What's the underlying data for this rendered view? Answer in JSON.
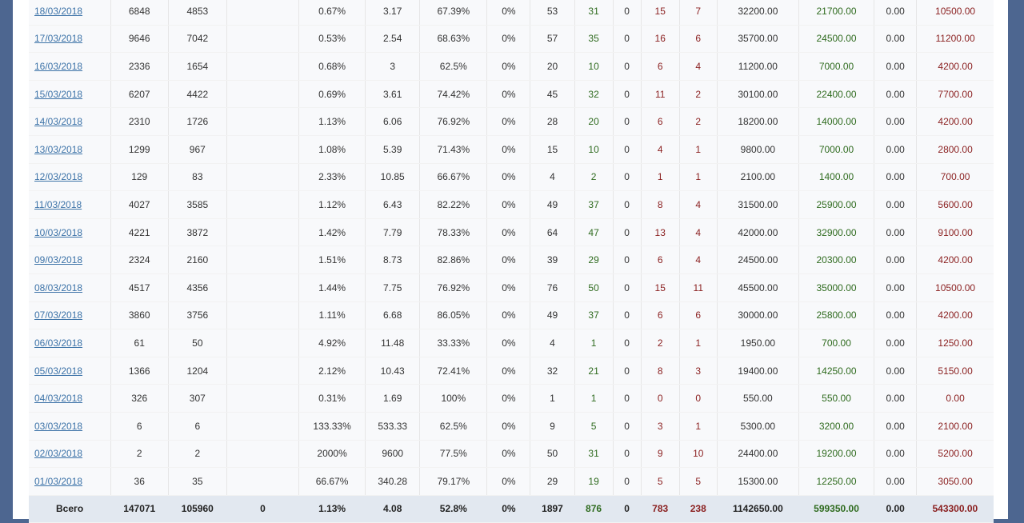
{
  "rows": [
    {
      "date": "18/03/2018",
      "c1": "6848",
      "c2": "4853",
      "c3": "",
      "c4": "0.67%",
      "c5": "3.17",
      "c6": "67.39%",
      "c7": "0%",
      "c8": "53",
      "c9": "31",
      "c10": "0",
      "c11": "15",
      "c12": "7",
      "c13": "32200.00",
      "c14": "21700.00",
      "c15": "0.00",
      "c16": "10500.00"
    },
    {
      "date": "17/03/2018",
      "c1": "9646",
      "c2": "7042",
      "c3": "",
      "c4": "0.53%",
      "c5": "2.54",
      "c6": "68.63%",
      "c7": "0%",
      "c8": "57",
      "c9": "35",
      "c10": "0",
      "c11": "16",
      "c12": "6",
      "c13": "35700.00",
      "c14": "24500.00",
      "c15": "0.00",
      "c16": "11200.00"
    },
    {
      "date": "16/03/2018",
      "c1": "2336",
      "c2": "1654",
      "c3": "",
      "c4": "0.68%",
      "c5": "3",
      "c6": "62.5%",
      "c7": "0%",
      "c8": "20",
      "c9": "10",
      "c10": "0",
      "c11": "6",
      "c12": "4",
      "c13": "11200.00",
      "c14": "7000.00",
      "c15": "0.00",
      "c16": "4200.00"
    },
    {
      "date": "15/03/2018",
      "c1": "6207",
      "c2": "4422",
      "c3": "",
      "c4": "0.69%",
      "c5": "3.61",
      "c6": "74.42%",
      "c7": "0%",
      "c8": "45",
      "c9": "32",
      "c10": "0",
      "c11": "11",
      "c12": "2",
      "c13": "30100.00",
      "c14": "22400.00",
      "c15": "0.00",
      "c16": "7700.00"
    },
    {
      "date": "14/03/2018",
      "c1": "2310",
      "c2": "1726",
      "c3": "",
      "c4": "1.13%",
      "c5": "6.06",
      "c6": "76.92%",
      "c7": "0%",
      "c8": "28",
      "c9": "20",
      "c10": "0",
      "c11": "6",
      "c12": "2",
      "c13": "18200.00",
      "c14": "14000.00",
      "c15": "0.00",
      "c16": "4200.00"
    },
    {
      "date": "13/03/2018",
      "c1": "1299",
      "c2": "967",
      "c3": "",
      "c4": "1.08%",
      "c5": "5.39",
      "c6": "71.43%",
      "c7": "0%",
      "c8": "15",
      "c9": "10",
      "c10": "0",
      "c11": "4",
      "c12": "1",
      "c13": "9800.00",
      "c14": "7000.00",
      "c15": "0.00",
      "c16": "2800.00"
    },
    {
      "date": "12/03/2018",
      "c1": "129",
      "c2": "83",
      "c3": "",
      "c4": "2.33%",
      "c5": "10.85",
      "c6": "66.67%",
      "c7": "0%",
      "c8": "4",
      "c9": "2",
      "c10": "0",
      "c11": "1",
      "c12": "1",
      "c13": "2100.00",
      "c14": "1400.00",
      "c15": "0.00",
      "c16": "700.00"
    },
    {
      "date": "11/03/2018",
      "c1": "4027",
      "c2": "3585",
      "c3": "",
      "c4": "1.12%",
      "c5": "6.43",
      "c6": "82.22%",
      "c7": "0%",
      "c8": "49",
      "c9": "37",
      "c10": "0",
      "c11": "8",
      "c12": "4",
      "c13": "31500.00",
      "c14": "25900.00",
      "c15": "0.00",
      "c16": "5600.00"
    },
    {
      "date": "10/03/2018",
      "c1": "4221",
      "c2": "3872",
      "c3": "",
      "c4": "1.42%",
      "c5": "7.79",
      "c6": "78.33%",
      "c7": "0%",
      "c8": "64",
      "c9": "47",
      "c10": "0",
      "c11": "13",
      "c12": "4",
      "c13": "42000.00",
      "c14": "32900.00",
      "c15": "0.00",
      "c16": "9100.00"
    },
    {
      "date": "09/03/2018",
      "c1": "2324",
      "c2": "2160",
      "c3": "",
      "c4": "1.51%",
      "c5": "8.73",
      "c6": "82.86%",
      "c7": "0%",
      "c8": "39",
      "c9": "29",
      "c10": "0",
      "c11": "6",
      "c12": "4",
      "c13": "24500.00",
      "c14": "20300.00",
      "c15": "0.00",
      "c16": "4200.00"
    },
    {
      "date": "08/03/2018",
      "c1": "4517",
      "c2": "4356",
      "c3": "",
      "c4": "1.44%",
      "c5": "7.75",
      "c6": "76.92%",
      "c7": "0%",
      "c8": "76",
      "c9": "50",
      "c10": "0",
      "c11": "15",
      "c12": "11",
      "c13": "45500.00",
      "c14": "35000.00",
      "c15": "0.00",
      "c16": "10500.00"
    },
    {
      "date": "07/03/2018",
      "c1": "3860",
      "c2": "3756",
      "c3": "",
      "c4": "1.11%",
      "c5": "6.68",
      "c6": "86.05%",
      "c7": "0%",
      "c8": "49",
      "c9": "37",
      "c10": "0",
      "c11": "6",
      "c12": "6",
      "c13": "30000.00",
      "c14": "25800.00",
      "c15": "0.00",
      "c16": "4200.00"
    },
    {
      "date": "06/03/2018",
      "c1": "61",
      "c2": "50",
      "c3": "",
      "c4": "4.92%",
      "c5": "11.48",
      "c6": "33.33%",
      "c7": "0%",
      "c8": "4",
      "c9": "1",
      "c10": "0",
      "c11": "2",
      "c12": "1",
      "c13": "1950.00",
      "c14": "700.00",
      "c15": "0.00",
      "c16": "1250.00"
    },
    {
      "date": "05/03/2018",
      "c1": "1366",
      "c2": "1204",
      "c3": "",
      "c4": "2.12%",
      "c5": "10.43",
      "c6": "72.41%",
      "c7": "0%",
      "c8": "32",
      "c9": "21",
      "c10": "0",
      "c11": "8",
      "c12": "3",
      "c13": "19400.00",
      "c14": "14250.00",
      "c15": "0.00",
      "c16": "5150.00"
    },
    {
      "date": "04/03/2018",
      "c1": "326",
      "c2": "307",
      "c3": "",
      "c4": "0.31%",
      "c5": "1.69",
      "c6": "100%",
      "c7": "0%",
      "c8": "1",
      "c9": "1",
      "c10": "0",
      "c11": "0",
      "c12": "0",
      "c13": "550.00",
      "c14": "550.00",
      "c15": "0.00",
      "c16": "0.00"
    },
    {
      "date": "03/03/2018",
      "c1": "6",
      "c2": "6",
      "c3": "",
      "c4": "133.33%",
      "c5": "533.33",
      "c6": "62.5%",
      "c7": "0%",
      "c8": "9",
      "c9": "5",
      "c10": "0",
      "c11": "3",
      "c12": "1",
      "c13": "5300.00",
      "c14": "3200.00",
      "c15": "0.00",
      "c16": "2100.00"
    },
    {
      "date": "02/03/2018",
      "c1": "2",
      "c2": "2",
      "c3": "",
      "c4": "2000%",
      "c5": "9600",
      "c6": "77.5%",
      "c7": "0%",
      "c8": "50",
      "c9": "31",
      "c10": "0",
      "c11": "9",
      "c12": "10",
      "c13": "24400.00",
      "c14": "19200.00",
      "c15": "0.00",
      "c16": "5200.00"
    },
    {
      "date": "01/03/2018",
      "c1": "36",
      "c2": "35",
      "c3": "",
      "c4": "66.67%",
      "c5": "340.28",
      "c6": "79.17%",
      "c7": "0%",
      "c8": "29",
      "c9": "19",
      "c10": "0",
      "c11": "5",
      "c12": "5",
      "c13": "15300.00",
      "c14": "12250.00",
      "c15": "0.00",
      "c16": "3050.00"
    }
  ],
  "total": {
    "label": "Всего",
    "c1": "147071",
    "c2": "105960",
    "c3": "0",
    "c4": "1.13%",
    "c5": "4.08",
    "c6": "52.8%",
    "c7": "0%",
    "c8": "1897",
    "c9": "876",
    "c10": "0",
    "c11": "783",
    "c12": "238",
    "c13": "1142650.00",
    "c14": "599350.00",
    "c15": "0.00",
    "c16": "543300.00"
  },
  "colors": {
    "green": "#2f6b1f",
    "red": "#8a1f1f",
    "link": "#3d73a8",
    "total_bg": "#e2e8f0",
    "outer_bg": "#4d6690"
  }
}
